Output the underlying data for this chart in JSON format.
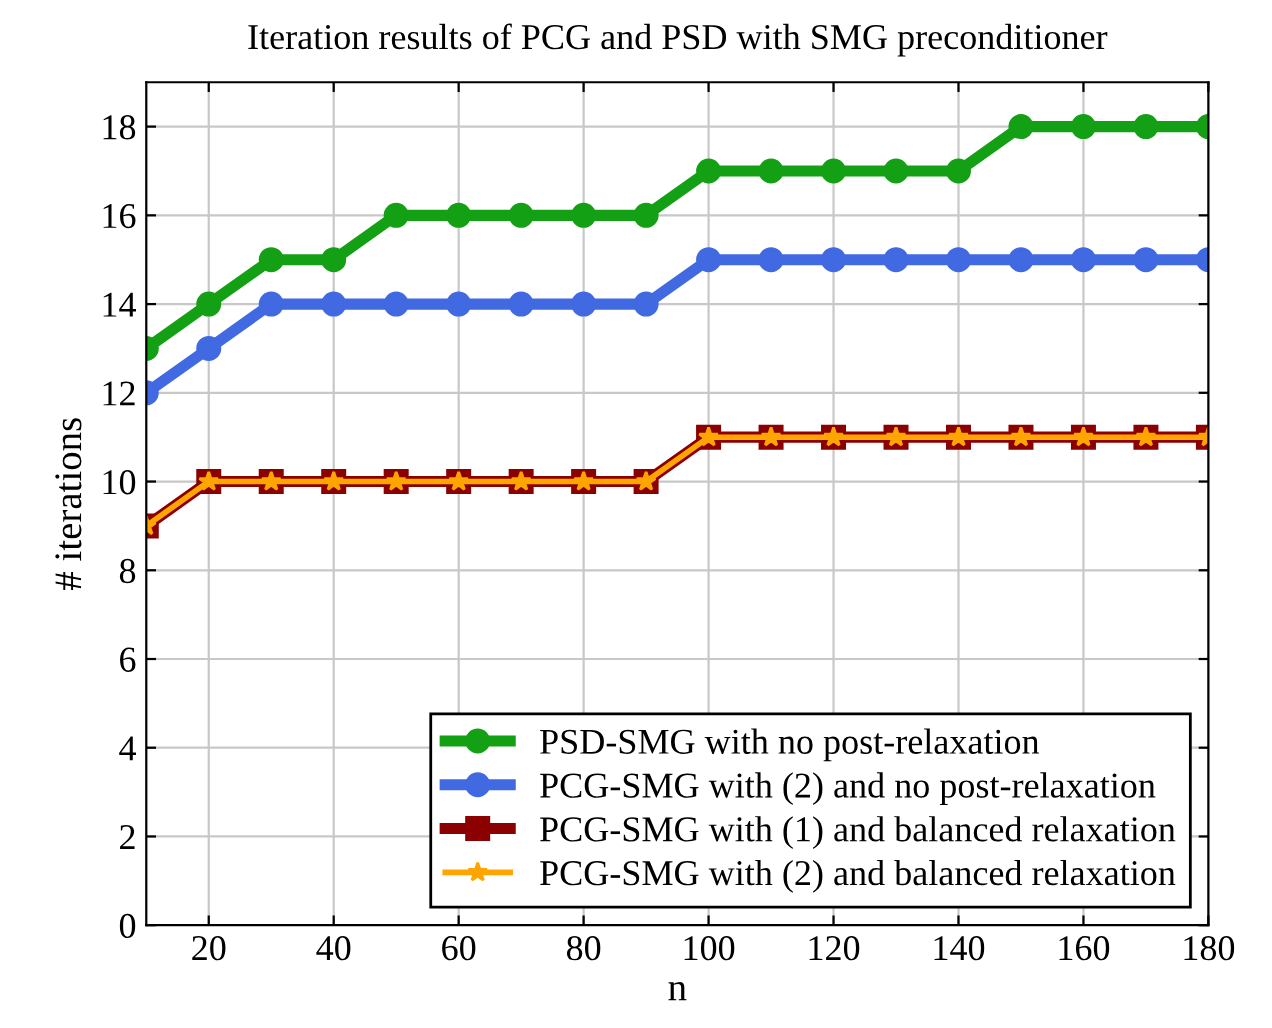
{
  "chart_data": {
    "type": "line",
    "title": "Iteration results of PCG and PSD with SMG preconditioner",
    "xlabel": "n",
    "ylabel": "# iterations",
    "x": [
      10,
      20,
      30,
      40,
      50,
      60,
      70,
      80,
      90,
      100,
      110,
      120,
      130,
      140,
      150,
      160,
      170,
      180
    ],
    "series": [
      {
        "name": "PSD-SMG with no post-relaxation",
        "color": "#14a014",
        "marker": "circle",
        "values": [
          13,
          14,
          15,
          15,
          16,
          16,
          16,
          16,
          16,
          17,
          17,
          17,
          17,
          17,
          18,
          18,
          18,
          18
        ]
      },
      {
        "name": "PCG-SMG with (2) and no post-relaxation",
        "color": "#4169e1",
        "marker": "circle",
        "values": [
          12,
          13,
          14,
          14,
          14,
          14,
          14,
          14,
          14,
          15,
          15,
          15,
          15,
          15,
          15,
          15,
          15,
          15
        ]
      },
      {
        "name": "PCG-SMG with (1) and balanced relaxation",
        "color": "#8b0000",
        "marker": "square",
        "values": [
          9,
          10,
          10,
          10,
          10,
          10,
          10,
          10,
          10,
          11,
          11,
          11,
          11,
          11,
          11,
          11,
          11,
          11
        ]
      },
      {
        "name": "PCG-SMG with (2) and balanced relaxation",
        "color": "#ffa500",
        "marker": "star",
        "values": [
          9,
          10,
          10,
          10,
          10,
          10,
          10,
          10,
          10,
          11,
          11,
          11,
          11,
          11,
          11,
          11,
          11,
          11
        ]
      }
    ],
    "xlim": [
      10,
      180
    ],
    "xticks": [
      20,
      40,
      60,
      80,
      100,
      120,
      140,
      160,
      180
    ],
    "ylim": [
      0,
      19
    ],
    "yticks": [
      0,
      2,
      4,
      6,
      8,
      10,
      12,
      14,
      16,
      18
    ],
    "grid": true,
    "legend": "bottom right",
    "line_style": "solid"
  }
}
